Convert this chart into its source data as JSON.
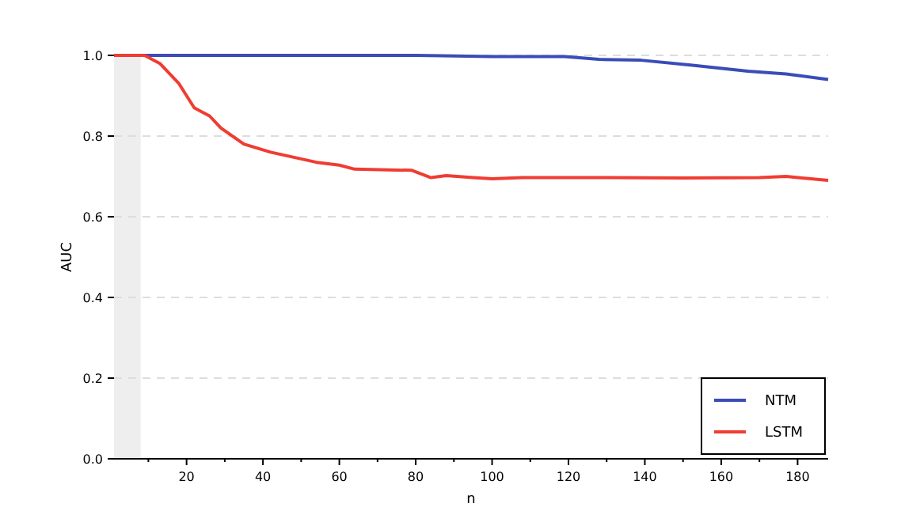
{
  "chart_data": {
    "type": "line",
    "xlabel": "n",
    "ylabel": "AUC",
    "xlim": [
      1,
      188
    ],
    "ylim": [
      0,
      1
    ],
    "xticks": [
      {
        "value": 10,
        "label": null
      },
      20,
      {
        "value": 30,
        "label": null
      },
      40,
      {
        "value": 50,
        "label": null
      },
      60,
      {
        "value": 70,
        "label": null
      },
      80,
      {
        "value": 90,
        "label": null
      },
      100,
      {
        "value": 110,
        "label": null
      },
      120,
      {
        "value": 130,
        "label": null
      },
      140,
      {
        "value": 150,
        "label": null
      },
      160,
      {
        "value": 170,
        "label": null
      },
      180
    ],
    "yticks": [
      {
        "value": 0,
        "label": "0.0"
      },
      {
        "value": 0.2,
        "label": "0.2"
      },
      {
        "value": 0.4,
        "label": "0.4"
      },
      {
        "value": 0.6,
        "label": "0.6"
      },
      {
        "value": 0.8,
        "label": "0.8"
      },
      {
        "value": 1,
        "label": "1.0"
      }
    ],
    "grid": "y",
    "legend": "bottom right",
    "line_style": "solid",
    "marker": "none",
    "bands": [
      {
        "axis": "x",
        "from": 1,
        "to": 8,
        "color": "#eeeeee"
      }
    ],
    "series": [
      {
        "name": "NTM",
        "color": "#3a4cb8",
        "x": [
          1,
          20,
          40,
          60,
          80,
          87,
          100,
          119,
          128,
          139,
          152,
          167,
          177,
          188
        ],
        "values": [
          1,
          1,
          1,
          1,
          1,
          0.999,
          0.997,
          0.997,
          0.99,
          0.988,
          0.976,
          0.961,
          0.954,
          0.94
        ]
      },
      {
        "name": "LSTM",
        "color": "#f03c32",
        "x": [
          1,
          9,
          13,
          18,
          22,
          26,
          29,
          35,
          42,
          54,
          60,
          64,
          79,
          84,
          88,
          95,
          100,
          108,
          130,
          150,
          170,
          177,
          188
        ],
        "values": [
          1,
          1,
          0.98,
          0.93,
          0.87,
          0.85,
          0.82,
          0.78,
          0.76,
          0.735,
          0.728,
          0.718,
          0.715,
          0.697,
          0.702,
          0.697,
          0.694,
          0.697,
          0.697,
          0.696,
          0.697,
          0.7,
          0.69
        ]
      }
    ]
  }
}
